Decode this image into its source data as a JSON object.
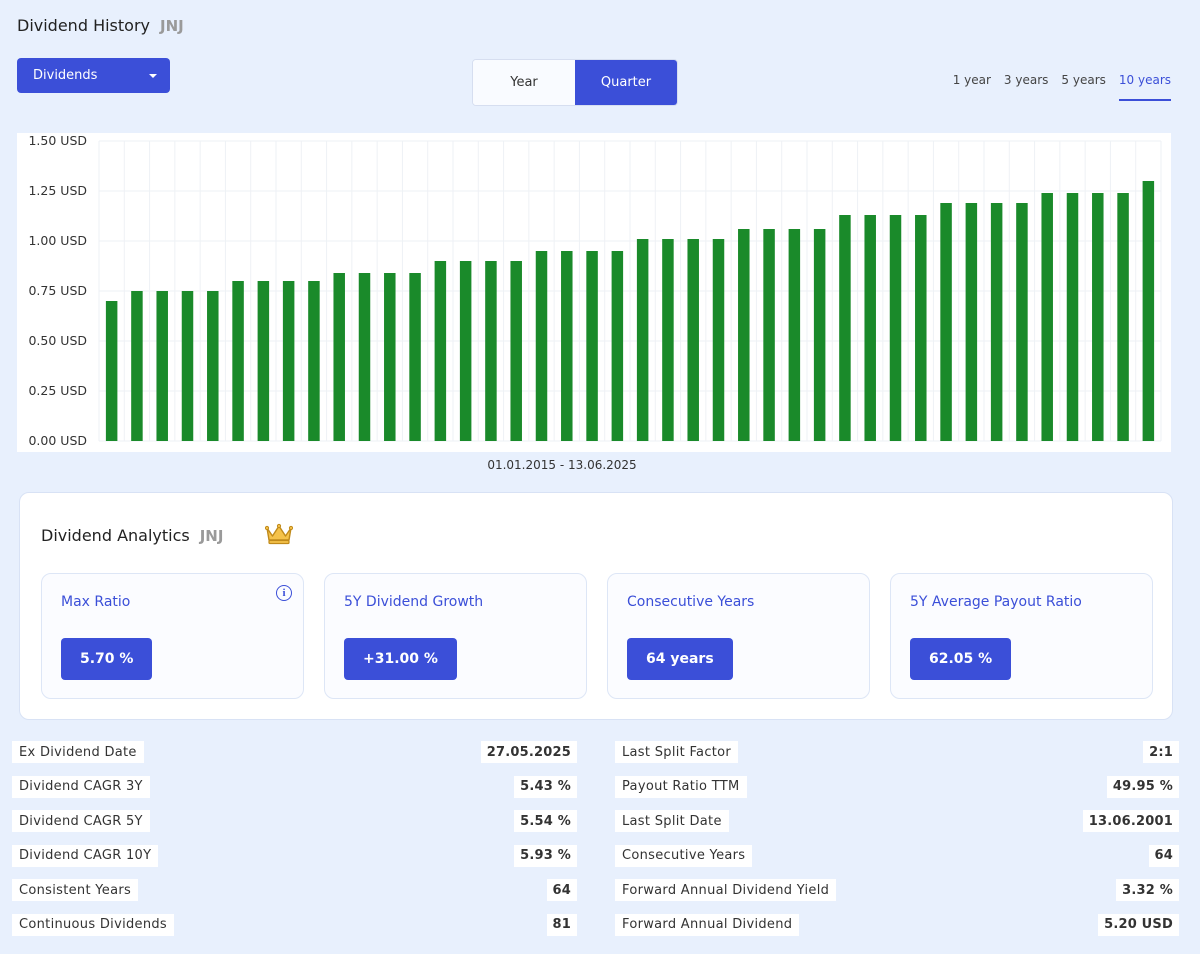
{
  "header": {
    "title": "Dividend History",
    "ticker": "JNJ"
  },
  "dropdown": {
    "selected": "Dividends"
  },
  "toggle": {
    "year_label": "Year",
    "quarter_label": "Quarter",
    "active": "Quarter"
  },
  "range_tabs": [
    "1 year",
    "3 years",
    "5 years",
    "10 years"
  ],
  "range_active": "10 years",
  "colors": {
    "accent": "#3b4fd8",
    "bar": "#1a8a2a",
    "background": "#e8f0fd"
  },
  "chart_data": {
    "type": "bar",
    "y_unit": "USD",
    "ylim": [
      0,
      1.5
    ],
    "y_ticks": [
      "0.00 USD",
      "0.25 USD",
      "0.50 USD",
      "0.75 USD",
      "1.00 USD",
      "1.25 USD",
      "1.50 USD"
    ],
    "grid": true,
    "values": [
      0.7,
      0.75,
      0.75,
      0.75,
      0.75,
      0.8,
      0.8,
      0.8,
      0.8,
      0.84,
      0.84,
      0.84,
      0.84,
      0.9,
      0.9,
      0.9,
      0.9,
      0.95,
      0.95,
      0.95,
      0.95,
      1.01,
      1.01,
      1.01,
      1.01,
      1.06,
      1.06,
      1.06,
      1.06,
      1.13,
      1.13,
      1.13,
      1.13,
      1.19,
      1.19,
      1.19,
      1.19,
      1.24,
      1.24,
      1.24,
      1.24,
      1.3
    ],
    "x_range_label": "01.01.2015 - 13.06.2025"
  },
  "analytics": {
    "title": "Dividend Analytics",
    "ticker": "JNJ",
    "crown_icon": "crown-icon",
    "cards": [
      {
        "label": "Max Ratio",
        "value": "5.70 %",
        "has_info": true
      },
      {
        "label": "5Y Dividend Growth",
        "value": "+31.00 %"
      },
      {
        "label": "Consecutive Years",
        "value": "64 years"
      },
      {
        "label": "5Y Average Payout Ratio",
        "value": "62.05 %"
      }
    ]
  },
  "stats_left": [
    {
      "label": "Ex Dividend Date",
      "value": "27.05.2025"
    },
    {
      "label": "Dividend CAGR 3Y",
      "value": "5.43 %"
    },
    {
      "label": "Dividend CAGR 5Y",
      "value": "5.54 %"
    },
    {
      "label": "Dividend CAGR 10Y",
      "value": "5.93 %"
    },
    {
      "label": "Consistent Years",
      "value": "64"
    },
    {
      "label": "Continuous Dividends",
      "value": "81"
    }
  ],
  "stats_right": [
    {
      "label": "Last Split Factor",
      "value": "2:1"
    },
    {
      "label": "Payout Ratio TTM",
      "value": "49.95 %"
    },
    {
      "label": "Last Split Date",
      "value": "13.06.2001"
    },
    {
      "label": "Consecutive Years",
      "value": "64"
    },
    {
      "label": "Forward Annual Dividend Yield",
      "value": "3.32 %"
    },
    {
      "label": "Forward Annual Dividend",
      "value": "5.20 USD"
    }
  ]
}
